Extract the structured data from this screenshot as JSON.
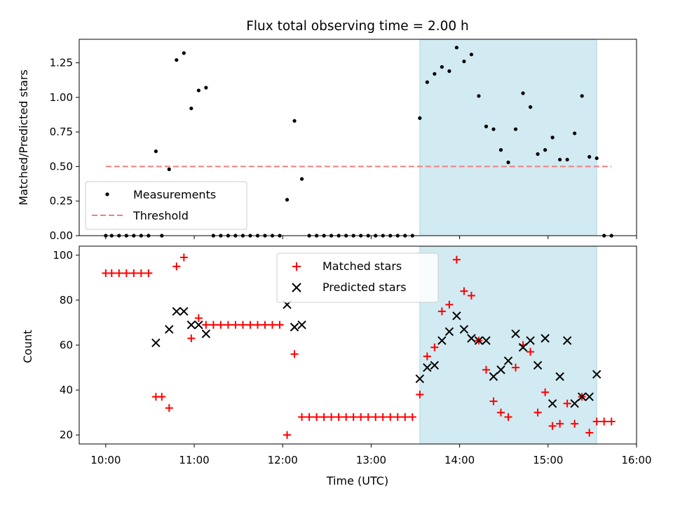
{
  "colors": {
    "measurement": "#000000",
    "threshold": "#f08080",
    "matched": "#ff0000",
    "predicted": "#000000",
    "shade": "#add8e6"
  },
  "chart_data": [
    {
      "type": "scatter",
      "title": "Flux total observing time = 2.00 h",
      "xlabel": "",
      "ylabel": "Matched/Predicted stars",
      "xlim": [
        "09:42",
        "16:00"
      ],
      "ylim": [
        0,
        1.42
      ],
      "yticks": [
        "0.00",
        "0.25",
        "0.50",
        "0.75",
        "1.00",
        "1.25"
      ],
      "shaded_region": {
        "x_start": "13:33",
        "x_end": "15:33"
      },
      "legend": {
        "position": "lower-left",
        "entries": [
          "Measurements",
          "Threshold"
        ]
      },
      "series": [
        {
          "name": "Measurements",
          "marker": "dot",
          "points": [
            [
              "10:00",
              0
            ],
            [
              "10:04",
              0
            ],
            [
              "10:09",
              0
            ],
            [
              "10:14",
              0
            ],
            [
              "10:19",
              0
            ],
            [
              "10:24",
              0
            ],
            [
              "10:29",
              0
            ],
            [
              "10:34",
              0.61
            ],
            [
              "10:38",
              0
            ],
            [
              "10:43",
              0.48
            ],
            [
              "10:48",
              1.27
            ],
            [
              "10:53",
              1.32
            ],
            [
              "10:58",
              0.92
            ],
            [
              "11:03",
              1.05
            ],
            [
              "11:08",
              1.07
            ],
            [
              "11:13",
              0
            ],
            [
              "11:18",
              0
            ],
            [
              "11:23",
              0
            ],
            [
              "11:28",
              0
            ],
            [
              "11:33",
              0
            ],
            [
              "11:38",
              0
            ],
            [
              "11:43",
              0
            ],
            [
              "11:48",
              0
            ],
            [
              "11:53",
              0
            ],
            [
              "11:58",
              0
            ],
            [
              "12:03",
              0.26
            ],
            [
              "12:08",
              0.83
            ],
            [
              "12:13",
              0.41
            ],
            [
              "12:18",
              0
            ],
            [
              "12:23",
              0
            ],
            [
              "12:28",
              0
            ],
            [
              "12:33",
              0
            ],
            [
              "12:38",
              0
            ],
            [
              "12:43",
              0
            ],
            [
              "12:48",
              0
            ],
            [
              "12:53",
              0
            ],
            [
              "12:58",
              0
            ],
            [
              "13:03",
              0
            ],
            [
              "13:08",
              0
            ],
            [
              "13:13",
              0
            ],
            [
              "13:18",
              0
            ],
            [
              "13:23",
              0
            ],
            [
              "13:28",
              0
            ],
            [
              "13:33",
              0.85
            ],
            [
              "13:38",
              1.11
            ],
            [
              "13:43",
              1.17
            ],
            [
              "13:48",
              1.22
            ],
            [
              "13:53",
              1.19
            ],
            [
              "13:58",
              1.36
            ],
            [
              "14:03",
              1.26
            ],
            [
              "14:08",
              1.31
            ],
            [
              "14:13",
              1.01
            ],
            [
              "14:18",
              0.79
            ],
            [
              "14:23",
              0.77
            ],
            [
              "14:28",
              0.62
            ],
            [
              "14:33",
              0.53
            ],
            [
              "14:38",
              0.77
            ],
            [
              "14:43",
              1.03
            ],
            [
              "14:48",
              0.93
            ],
            [
              "14:53",
              0.59
            ],
            [
              "14:58",
              0.62
            ],
            [
              "15:03",
              0.71
            ],
            [
              "15:08",
              0.55
            ],
            [
              "15:13",
              0.55
            ],
            [
              "15:18",
              0.74
            ],
            [
              "15:23",
              1.01
            ],
            [
              "15:28",
              0.57
            ],
            [
              "15:33",
              0.56
            ],
            [
              "15:38",
              0
            ],
            [
              "15:43",
              0
            ]
          ]
        },
        {
          "name": "Threshold",
          "marker": "dashed-line",
          "points": [
            [
              "10:00",
              0.5
            ],
            [
              "15:43",
              0.5
            ]
          ]
        }
      ]
    },
    {
      "type": "scatter",
      "title": "",
      "xlabel": "Time (UTC)",
      "ylabel": "Count",
      "xlim": [
        "09:42",
        "16:00"
      ],
      "ylim": [
        16,
        104
      ],
      "yticks": [
        "20",
        "40",
        "60",
        "80",
        "100"
      ],
      "xticks": [
        "10:00",
        "11:00",
        "12:00",
        "13:00",
        "14:00",
        "15:00",
        "16:00"
      ],
      "shaded_region": {
        "x_start": "13:33",
        "x_end": "15:33"
      },
      "legend": {
        "position": "upper-center",
        "entries": [
          "Matched stars",
          "Predicted stars"
        ]
      },
      "series": [
        {
          "name": "Matched stars",
          "marker": "plus",
          "points": [
            [
              "10:00",
              92
            ],
            [
              "10:04",
              92
            ],
            [
              "10:09",
              92
            ],
            [
              "10:14",
              92
            ],
            [
              "10:19",
              92
            ],
            [
              "10:24",
              92
            ],
            [
              "10:29",
              92
            ],
            [
              "10:34",
              37
            ],
            [
              "10:38",
              37
            ],
            [
              "10:43",
              32
            ],
            [
              "10:48",
              95
            ],
            [
              "10:53",
              99
            ],
            [
              "10:58",
              63
            ],
            [
              "11:03",
              72
            ],
            [
              "11:08",
              69
            ],
            [
              "11:13",
              69
            ],
            [
              "11:18",
              69
            ],
            [
              "11:23",
              69
            ],
            [
              "11:28",
              69
            ],
            [
              "11:33",
              69
            ],
            [
              "11:38",
              69
            ],
            [
              "11:43",
              69
            ],
            [
              "11:48",
              69
            ],
            [
              "11:53",
              69
            ],
            [
              "11:58",
              69
            ],
            [
              "12:03",
              20
            ],
            [
              "12:08",
              56
            ],
            [
              "12:13",
              28
            ],
            [
              "12:18",
              28
            ],
            [
              "12:23",
              28
            ],
            [
              "12:28",
              28
            ],
            [
              "12:33",
              28
            ],
            [
              "12:38",
              28
            ],
            [
              "12:43",
              28
            ],
            [
              "12:48",
              28
            ],
            [
              "12:53",
              28
            ],
            [
              "12:58",
              28
            ],
            [
              "13:03",
              28
            ],
            [
              "13:08",
              28
            ],
            [
              "13:13",
              28
            ],
            [
              "13:18",
              28
            ],
            [
              "13:23",
              28
            ],
            [
              "13:28",
              28
            ],
            [
              "13:33",
              38
            ],
            [
              "13:38",
              55
            ],
            [
              "13:43",
              59
            ],
            [
              "13:48",
              75
            ],
            [
              "13:53",
              78
            ],
            [
              "13:58",
              98
            ],
            [
              "14:03",
              84
            ],
            [
              "14:08",
              82
            ],
            [
              "14:13",
              62
            ],
            [
              "14:18",
              49
            ],
            [
              "14:23",
              35
            ],
            [
              "14:28",
              30
            ],
            [
              "14:33",
              28
            ],
            [
              "14:38",
              50
            ],
            [
              "14:43",
              60
            ],
            [
              "14:48",
              57
            ],
            [
              "14:53",
              30
            ],
            [
              "14:58",
              39
            ],
            [
              "15:03",
              24
            ],
            [
              "15:08",
              25
            ],
            [
              "15:13",
              34
            ],
            [
              "15:18",
              25
            ],
            [
              "15:23",
              37
            ],
            [
              "15:28",
              21
            ],
            [
              "15:33",
              26
            ],
            [
              "15:38",
              26
            ],
            [
              "15:43",
              26
            ]
          ]
        },
        {
          "name": "Predicted stars",
          "marker": "x",
          "points": [
            [
              "10:34",
              61
            ],
            [
              "10:43",
              67
            ],
            [
              "10:48",
              75
            ],
            [
              "10:53",
              75
            ],
            [
              "10:58",
              69
            ],
            [
              "11:03",
              69
            ],
            [
              "11:08",
              65
            ],
            [
              "12:03",
              78
            ],
            [
              "12:08",
              68
            ],
            [
              "12:13",
              69
            ],
            [
              "13:33",
              45
            ],
            [
              "13:38",
              50
            ],
            [
              "13:43",
              51
            ],
            [
              "13:48",
              62
            ],
            [
              "13:53",
              66
            ],
            [
              "13:58",
              73
            ],
            [
              "14:03",
              67
            ],
            [
              "14:08",
              63
            ],
            [
              "14:13",
              62
            ],
            [
              "14:18",
              62
            ],
            [
              "14:23",
              46
            ],
            [
              "14:28",
              49
            ],
            [
              "14:33",
              53
            ],
            [
              "14:38",
              65
            ],
            [
              "14:43",
              59
            ],
            [
              "14:48",
              62
            ],
            [
              "14:53",
              51
            ],
            [
              "14:58",
              63
            ],
            [
              "15:03",
              34
            ],
            [
              "15:08",
              46
            ],
            [
              "15:13",
              62
            ],
            [
              "15:18",
              34
            ],
            [
              "15:23",
              37
            ],
            [
              "15:28",
              37
            ],
            [
              "15:33",
              47
            ]
          ]
        }
      ]
    }
  ]
}
